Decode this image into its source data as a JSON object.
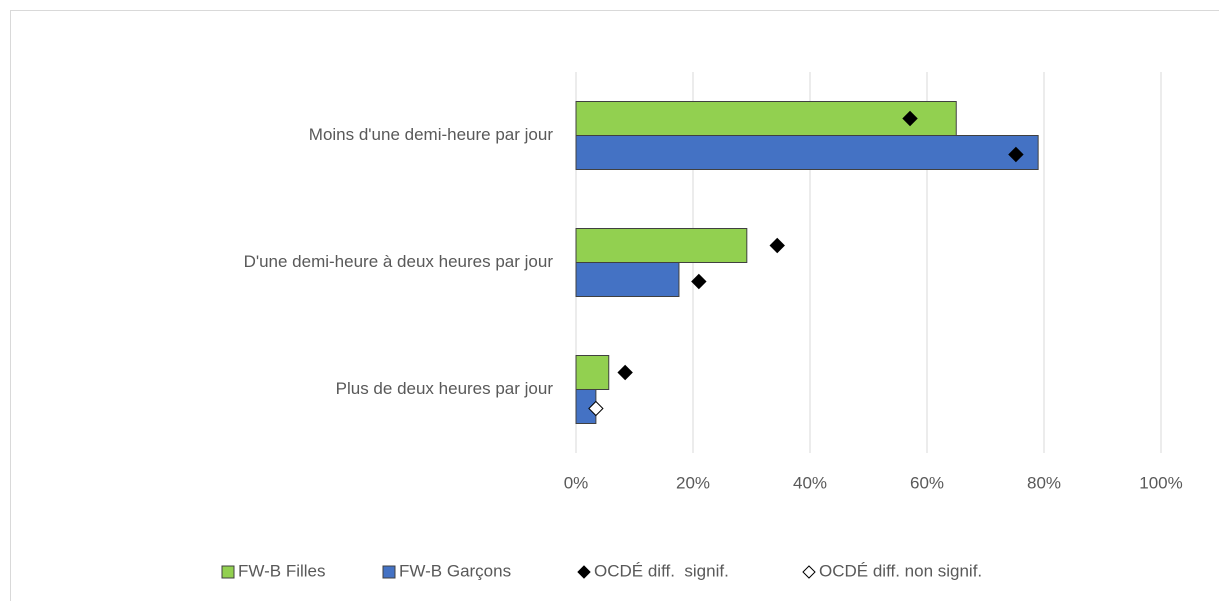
{
  "chart_data": {
    "type": "bar",
    "orientation": "horizontal",
    "categories": [
      "Moins d'une demi-heure par jour",
      "D'une demi-heure à deux heures par jour",
      "Plus de deux heures par jour"
    ],
    "series": [
      {
        "name": "FW-B Filles",
        "color": "#92d050",
        "values": [
          65.0,
          29.2,
          5.6
        ]
      },
      {
        "name": "FW-B Garçons",
        "color": "#4472c4",
        "values": [
          79.0,
          17.6,
          3.4
        ]
      },
      {
        "name": "OCDÉ diff.  signif.",
        "color": "#000000",
        "marker": "diamond-filled",
        "values": [
          [
            57.1,
            75.2
          ],
          [
            34.4,
            21.0
          ],
          [
            8.4,
            null
          ]
        ]
      },
      {
        "name": "OCDÉ diff. non signif.",
        "color": "#ffffff",
        "marker": "diamond-open",
        "values": [
          [
            null,
            null
          ],
          [
            null,
            null
          ],
          [
            null,
            3.4
          ]
        ]
      }
    ],
    "xlim": [
      0,
      100
    ],
    "xticks": [
      {
        "value": 0,
        "label": "0%"
      },
      {
        "value": 20,
        "label": "20%"
      },
      {
        "value": 40,
        "label": "40%"
      },
      {
        "value": 60,
        "label": "60%"
      },
      {
        "value": 80,
        "label": "80%"
      },
      {
        "value": 100,
        "label": "100%"
      }
    ],
    "grid": true,
    "legend": "bottom"
  }
}
